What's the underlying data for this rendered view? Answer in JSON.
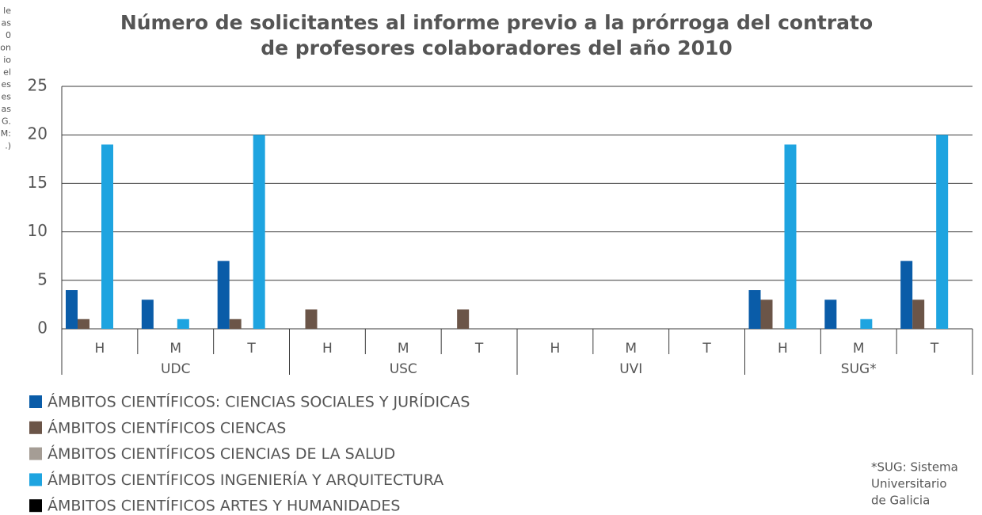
{
  "chart_data": {
    "type": "bar",
    "title": [
      "Número de solicitantes al informe previo a la prórroga del contrato",
      "de profesores colaboradores del año 2010"
    ],
    "categories": [
      "H",
      "M",
      "T",
      "H",
      "M",
      "T",
      "H",
      "M",
      "T",
      "H",
      "M",
      "T"
    ],
    "groups": [
      "UDC",
      "USC",
      "UVI",
      "SUG*"
    ],
    "series": [
      {
        "name": "ÁMBITOS CIENTÍFICOS: CIENCIAS SOCIALES Y JURÍDICAS",
        "color": "#0a5ca8",
        "values": [
          4,
          3,
          7,
          0,
          0,
          0,
          0,
          0,
          0,
          4,
          3,
          7
        ]
      },
      {
        "name": "ÁMBITOS CIENTÍFICOS CIENCAS",
        "color": "#6b5548",
        "values": [
          1,
          0,
          1,
          2,
          0,
          2,
          0,
          0,
          0,
          3,
          0,
          3
        ]
      },
      {
        "name": "ÁMBITOS CIENTÍFICOS CIENCIAS DE LA SALUD",
        "color": "#a59d95",
        "values": [
          0,
          0,
          0,
          0,
          0,
          0,
          0,
          0,
          0,
          0,
          0,
          0
        ]
      },
      {
        "name": "ÁMBITOS CIENTÍFICOS INGENIERÍA Y ARQUITECTURA",
        "color": "#1ea4e0",
        "values": [
          19,
          1,
          20,
          0,
          0,
          0,
          0,
          0,
          0,
          19,
          1,
          20
        ]
      },
      {
        "name": "ÁMBITOS CIENTÍFICOS ARTES Y HUMANIDADES",
        "color": "#000000",
        "values": [
          0,
          0,
          0,
          0,
          0,
          0,
          0,
          0,
          0,
          0,
          0,
          0
        ]
      }
    ],
    "ylim": [
      0,
      25
    ],
    "yticks": [
      0,
      5,
      10,
      15,
      20,
      25
    ],
    "grid": true,
    "footnote": [
      "*SUG: Sistema",
      "Universitario",
      "de Galicia"
    ],
    "side_text": [
      "le",
      "as",
      "0",
      "on",
      "io",
      "el",
      "es",
      "es",
      "as",
      "G.",
      "M:",
      ".)"
    ]
  }
}
